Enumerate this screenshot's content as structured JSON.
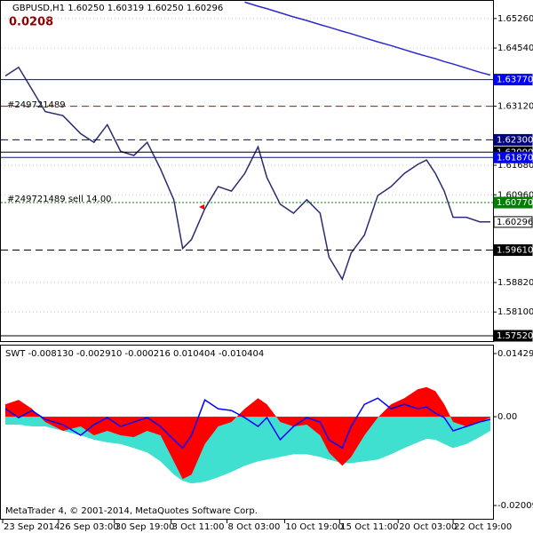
{
  "chart_data": [
    {
      "type": "line",
      "title": "GBPUSD,H1  1.60250 1.60319 1.60250 1.60296",
      "annotations": [
        "0.0208",
        "#249721489",
        "#249721489 sell 14.00"
      ],
      "x": [
        5,
        20,
        35,
        50,
        70,
        90,
        105,
        120,
        135,
        150,
        165,
        180,
        195,
        205,
        215,
        230,
        245,
        260,
        275,
        290,
        300,
        315,
        330,
        345,
        360,
        370,
        385,
        395,
        410,
        425,
        440,
        455,
        470,
        480,
        490,
        500,
        510,
        525,
        540,
        552
      ],
      "xlim": [
        0,
        555
      ],
      "ylim": [
        1.5739,
        1.6569
      ],
      "yticks": [
        {
          "value": 1.6526,
          "label": "1.65260"
        },
        {
          "value": 1.6454,
          "label": "1.64540"
        },
        {
          "value": 1.6312,
          "label": "1.63120"
        },
        {
          "value": 1.6168,
          "label": "1.61680"
        },
        {
          "value": 1.6096,
          "label": "1.60960"
        },
        {
          "value": 1.5882,
          "label": "1.58820"
        },
        {
          "value": 1.581,
          "label": "1.58100"
        }
      ],
      "grid": true,
      "series": [
        {
          "color": "#2b2b70",
          "values": [
            1.6386,
            1.6407,
            1.6353,
            1.6299,
            1.6289,
            1.6245,
            1.6224,
            1.6267,
            1.6202,
            1.6192,
            1.6224,
            1.6159,
            1.6084,
            1.5965,
            1.5987,
            1.6062,
            1.6116,
            1.6105,
            1.6148,
            1.6213,
            1.6138,
            1.6073,
            1.6051,
            1.6084,
            1.6051,
            1.5944,
            1.589,
            1.5954,
            1.5998,
            1.6094,
            1.6116,
            1.6148,
            1.617,
            1.6181,
            1.6148,
            1.6105,
            1.6041,
            1.6041,
            1.603,
            1.603
          ]
        },
        {
          "color": "#2a2ad0",
          "values": [
            null,
            null,
            null,
            null,
            null,
            null,
            null,
            null,
            null,
            null,
            null,
            null,
            null,
            null,
            null,
            null,
            null,
            null,
            1.6566,
            1.6556,
            1.655,
            1.654,
            1.653,
            1.6521,
            1.6511,
            1.6505,
            1.6495,
            1.6489,
            1.6479,
            1.6469,
            1.646,
            1.645,
            1.644,
            1.6434,
            1.6428,
            1.6421,
            1.6415,
            1.6405,
            1.6395,
            1.6388
          ]
        }
      ],
      "levels": [
        {
          "value": 1.6377,
          "label": "1.63770",
          "color": "#0000ff",
          "style": "solid"
        },
        {
          "value": 1.6312,
          "color": "#cc0000",
          "style": "dashed"
        },
        {
          "value": 1.623,
          "label": "1.62300",
          "color": "#000080",
          "style": "dashed"
        },
        {
          "value": 1.62,
          "label": "1.62000",
          "color": "#000000",
          "style": "solid"
        },
        {
          "value": 1.6187,
          "label": "1.61870",
          "color": "#0000ff",
          "style": "solid"
        },
        {
          "value": 1.6077,
          "label": "1.60770",
          "color": "#008000",
          "style": "dotted"
        },
        {
          "value": 1.60296,
          "label": "1.60296",
          "color": "#ffffff",
          "style": "none"
        },
        {
          "value": 1.5961,
          "label": "1.59610",
          "color": "#000000",
          "style": "dashed"
        },
        {
          "value": 1.5752,
          "label": "1.57520",
          "color": "#000000",
          "style": "solid"
        }
      ]
    },
    {
      "type": "area",
      "title": "SWT -0.008130 -0.002910 -0.000216 0.010404 -0.010404",
      "annotations": [
        "MetaTrader 4, © 2001-2014, MetaQuotes Software Corp."
      ],
      "x": [
        5,
        20,
        35,
        50,
        70,
        90,
        105,
        120,
        135,
        150,
        165,
        180,
        195,
        205,
        215,
        230,
        245,
        260,
        275,
        290,
        300,
        315,
        330,
        345,
        360,
        370,
        385,
        395,
        410,
        425,
        440,
        455,
        470,
        480,
        490,
        500,
        510,
        525,
        540,
        552
      ],
      "xlim": [
        0,
        555
      ],
      "xticks": [
        {
          "value": 2,
          "label": "23 Sep 2014"
        },
        {
          "value": 65,
          "label": "26 Sep 03:00"
        },
        {
          "value": 128,
          "label": "30 Sep 19:00"
        },
        {
          "value": 192,
          "label": "3 Oct 11:00"
        },
        {
          "value": 255,
          "label": "8 Oct 03:00"
        },
        {
          "value": 320,
          "label": "10 Oct 19:00"
        },
        {
          "value": 382,
          "label": "15 Oct 11:00"
        },
        {
          "value": 448,
          "label": "20 Oct 03:00"
        },
        {
          "value": 510,
          "label": "22 Oct 19:00"
        }
      ],
      "ylim": [
        -0.0231,
        0.0161
      ],
      "yticks": [
        0.014293,
        {
          "value": 0,
          "label": "0.00"
        },
        -0.020092
      ],
      "series": [
        {
          "color": "#40e0d0",
          "values": [
            -0.0018,
            -0.0018,
            -0.0022,
            -0.0022,
            -0.0032,
            -0.0042,
            -0.0052,
            -0.0058,
            -0.0062,
            -0.0071,
            -0.0081,
            -0.0101,
            -0.0131,
            -0.0145,
            -0.0151,
            -0.0147,
            -0.0137,
            -0.0125,
            -0.0111,
            -0.0101,
            -0.0097,
            -0.0091,
            -0.0085,
            -0.0085,
            -0.0091,
            -0.0097,
            -0.0105,
            -0.0105,
            -0.0101,
            -0.0097,
            -0.0085,
            -0.0071,
            -0.0058,
            -0.005,
            -0.0052,
            -0.0062,
            -0.0071,
            -0.0062,
            -0.0046,
            -0.0032
          ]
        },
        {
          "color": "#ff0000",
          "values": [
            0.0028,
            0.0038,
            0.0018,
            -0.0012,
            -0.0032,
            -0.0022,
            -0.0042,
            -0.0032,
            -0.0042,
            -0.0046,
            -0.0032,
            -0.0042,
            -0.0101,
            -0.0141,
            -0.0131,
            -0.0062,
            -0.0022,
            -0.0012,
            0.0018,
            0.0042,
            0.0028,
            -0.0012,
            -0.0022,
            -0.0018,
            -0.0042,
            -0.0081,
            -0.0111,
            -0.0091,
            -0.0042,
            -0.0002,
            0.0028,
            0.0042,
            0.0062,
            0.0067,
            0.0058,
            0.0028,
            -0.0012,
            -0.0022,
            -0.0012,
            -0.0002
          ]
        },
        {
          "color": "#0000ff",
          "type": "line",
          "values": [
            0.0018,
            -0.0002,
            0.0014,
            -0.0006,
            -0.0018,
            -0.0042,
            -0.0018,
            -0.0002,
            -0.0022,
            -0.0012,
            -0.0002,
            -0.0022,
            -0.0052,
            -0.0071,
            -0.0042,
            0.0038,
            0.0018,
            0.0014,
            -0.0002,
            -0.0022,
            -0.0002,
            -0.0052,
            -0.0022,
            -0.0002,
            -0.0012,
            -0.0052,
            -0.0071,
            -0.0022,
            0.0028,
            0.0042,
            0.0018,
            0.0028,
            0.0018,
            0.0022,
            0.0008,
            -0.0002,
            -0.0032,
            -0.0022,
            -0.0012,
            -0.0006
          ]
        }
      ]
    }
  ]
}
